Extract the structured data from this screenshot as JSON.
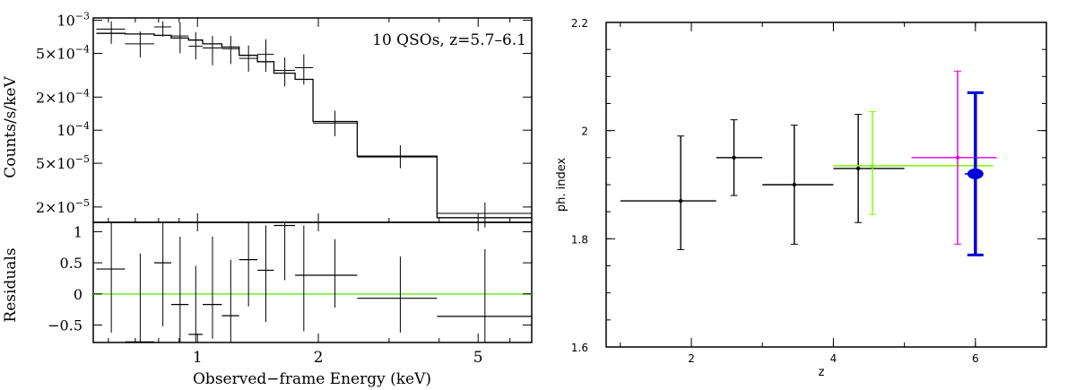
{
  "chart_data": [
    {
      "id": "spectrum",
      "type": "line",
      "log_x": true,
      "log_y": true,
      "xlim": [
        0.55,
        6.8
      ],
      "ylim": [
        1.45e-05,
        0.00105
      ],
      "annotation": "10 QSOs, z=5.7–6.1",
      "ylabel": "Counts/s/keV",
      "y_ticks": [
        {
          "value": 0.001,
          "base": "10",
          "exp": "−3"
        },
        {
          "value": 0.0005,
          "base": "5×10",
          "exp": "−4"
        },
        {
          "value": 0.0002,
          "base": "2×10",
          "exp": "−4"
        },
        {
          "value": 0.0001,
          "base": "10",
          "exp": "−4"
        },
        {
          "value": 5e-05,
          "base": "5×10",
          "exp": "−5"
        },
        {
          "value": 2e-05,
          "base": "2×10",
          "exp": "−5"
        }
      ],
      "data_points": [
        {
          "x": 0.61,
          "xlo": 0.56,
          "xhi": 0.66,
          "y": 0.00083,
          "ylo": 0.00061,
          "yhi": 0.00098
        },
        {
          "x": 0.72,
          "xlo": 0.66,
          "xhi": 0.78,
          "y": 0.00061,
          "ylo": 0.00046,
          "yhi": 0.00079
        },
        {
          "x": 0.82,
          "xlo": 0.78,
          "xhi": 0.86,
          "y": 0.00087,
          "ylo": 0.00071,
          "yhi": 0.00098
        },
        {
          "x": 0.905,
          "xlo": 0.86,
          "xhi": 0.95,
          "y": 0.00072,
          "ylo": 0.0005,
          "yhi": 0.00096
        },
        {
          "x": 0.99,
          "xlo": 0.95,
          "xhi": 1.03,
          "y": 0.00058,
          "ylo": 0.00044,
          "yhi": 0.00078
        },
        {
          "x": 1.09,
          "xlo": 1.03,
          "xhi": 1.15,
          "y": 0.00056,
          "ylo": 0.00039,
          "yhi": 0.00072
        },
        {
          "x": 1.21,
          "xlo": 1.15,
          "xhi": 1.27,
          "y": 0.00055,
          "ylo": 0.0004,
          "yhi": 0.00072
        },
        {
          "x": 1.34,
          "xlo": 1.27,
          "xhi": 1.41,
          "y": 0.00045,
          "ylo": 0.00034,
          "yhi": 0.00059
        },
        {
          "x": 1.48,
          "xlo": 1.41,
          "xhi": 1.55,
          "y": 0.00049,
          "ylo": 0.00034,
          "yhi": 0.00067
        },
        {
          "x": 1.65,
          "xlo": 1.55,
          "xhi": 1.75,
          "y": 0.00035,
          "ylo": 0.00025,
          "yhi": 0.00046
        },
        {
          "x": 1.84,
          "xlo": 1.75,
          "xhi": 1.94,
          "y": 0.00037,
          "ylo": 0.00026,
          "yhi": 0.00049
        },
        {
          "x": 2.2,
          "xlo": 1.94,
          "xhi": 2.5,
          "y": 0.000116,
          "ylo": 8.8e-05,
          "yhi": 0.00015
        },
        {
          "x": 3.2,
          "xlo": 2.5,
          "xhi": 3.95,
          "y": 5.7e-05,
          "ylo": 4.5e-05,
          "yhi": 7.3e-05
        },
        {
          "x": 5.2,
          "xlo": 3.95,
          "xhi": 6.8,
          "y": 1.75e-05,
          "ylo": 1.3e-05,
          "yhi": 2.2e-05
        }
      ],
      "model_steps": [
        {
          "xlo": 0.56,
          "xhi": 0.66,
          "y": 0.00076
        },
        {
          "xlo": 0.66,
          "xhi": 0.78,
          "y": 0.00075
        },
        {
          "xlo": 0.78,
          "xhi": 0.86,
          "y": 0.00073
        },
        {
          "xlo": 0.86,
          "xhi": 0.95,
          "y": 0.00069
        },
        {
          "xlo": 0.95,
          "xhi": 1.03,
          "y": 0.00066
        },
        {
          "xlo": 1.03,
          "xhi": 1.15,
          "y": 0.00061
        },
        {
          "xlo": 1.15,
          "xhi": 1.27,
          "y": 0.00057
        },
        {
          "xlo": 1.27,
          "xhi": 1.41,
          "y": 0.00048
        },
        {
          "xlo": 1.41,
          "xhi": 1.55,
          "y": 0.00042
        },
        {
          "xlo": 1.55,
          "xhi": 1.75,
          "y": 0.00033
        },
        {
          "xlo": 1.75,
          "xhi": 1.94,
          "y": 0.00029
        },
        {
          "xlo": 1.94,
          "xhi": 2.5,
          "y": 0.00012
        },
        {
          "xlo": 2.5,
          "xhi": 3.95,
          "y": 5.8e-05
        },
        {
          "xlo": 3.95,
          "xhi": 6.8,
          "y": 1.6e-05
        }
      ]
    },
    {
      "id": "residuals",
      "type": "scatter",
      "log_x": true,
      "xlim": [
        0.55,
        6.8
      ],
      "ylim": [
        -0.78,
        1.15
      ],
      "xlabel": "Observed−frame Energy (keV)",
      "ylabel": "Residuals",
      "x_ticks": [
        {
          "value": 1,
          "label": "1"
        },
        {
          "value": 2,
          "label": "2"
        },
        {
          "value": 5,
          "label": "5"
        }
      ],
      "y_ticks": [
        {
          "value": 1,
          "label": "1"
        },
        {
          "value": 0.5,
          "label": "0.5"
        },
        {
          "value": 0,
          "label": "0"
        },
        {
          "value": -0.5,
          "label": "−0.5"
        }
      ],
      "reference_line": {
        "y": 0,
        "color": "#90ee50"
      },
      "points": [
        {
          "x": 0.61,
          "xlo": 0.56,
          "xhi": 0.66,
          "y": 0.4,
          "ylo": -0.62,
          "yhi": 1.15
        },
        {
          "x": 0.72,
          "xlo": 0.66,
          "xhi": 0.78,
          "y": -0.77,
          "ylo": -0.78,
          "yhi": 0.65
        },
        {
          "x": 0.82,
          "xlo": 0.78,
          "xhi": 0.86,
          "y": 0.5,
          "ylo": -0.52,
          "yhi": 1.15
        },
        {
          "x": 0.905,
          "xlo": 0.86,
          "xhi": 0.95,
          "y": -0.17,
          "ylo": -0.78,
          "yhi": 0.92
        },
        {
          "x": 0.99,
          "xlo": 0.95,
          "xhi": 1.03,
          "y": -0.65,
          "ylo": -0.78,
          "yhi": 0.45
        },
        {
          "x": 1.09,
          "xlo": 1.03,
          "xhi": 1.15,
          "y": -0.17,
          "ylo": -0.72,
          "yhi": 0.92
        },
        {
          "x": 1.21,
          "xlo": 1.15,
          "xhi": 1.27,
          "y": -0.35,
          "ylo": -0.78,
          "yhi": 0.55
        },
        {
          "x": 1.34,
          "xlo": 1.27,
          "xhi": 1.41,
          "y": 0.55,
          "ylo": -0.2,
          "yhi": 1.15
        },
        {
          "x": 1.48,
          "xlo": 1.41,
          "xhi": 1.55,
          "y": 0.38,
          "ylo": -0.45,
          "yhi": 1.1
        },
        {
          "x": 1.65,
          "xlo": 1.55,
          "xhi": 1.75,
          "y": 1.1,
          "ylo": 0.22,
          "yhi": 1.15
        },
        {
          "x": 1.84,
          "xlo": 1.75,
          "xhi": 1.94,
          "y": 0.3,
          "ylo": -0.6,
          "yhi": 1.1
        },
        {
          "x": 2.2,
          "xlo": 1.94,
          "xhi": 2.5,
          "y": 0.3,
          "ylo": -0.22,
          "yhi": 0.88
        },
        {
          "x": 3.2,
          "xlo": 2.5,
          "xhi": 3.95,
          "y": -0.07,
          "ylo": -0.62,
          "yhi": 0.6
        },
        {
          "x": 5.2,
          "xlo": 3.95,
          "xhi": 6.8,
          "y": -0.36,
          "ylo": -0.78,
          "yhi": 0.72
        }
      ]
    },
    {
      "id": "photon-index",
      "type": "scatter",
      "xlim": [
        0.8,
        7.0
      ],
      "ylim": [
        1.6,
        2.2
      ],
      "xlabel": "z",
      "ylabel": "ph. index",
      "x_ticks": [
        {
          "value": 2,
          "label": "2"
        },
        {
          "value": 4,
          "label": "4"
        },
        {
          "value": 6,
          "label": "6"
        }
      ],
      "y_ticks": [
        {
          "value": 1.6,
          "label": "1.6"
        },
        {
          "value": 1.8,
          "label": "1.8"
        },
        {
          "value": 2.0,
          "label": "2"
        },
        {
          "value": 2.2,
          "label": "2.2"
        }
      ],
      "series": [
        {
          "color": "#000000",
          "points": [
            {
              "x": 1.85,
              "xlo": 1.0,
              "xhi": 2.35,
              "y": 1.87,
              "ylo": 1.78,
              "yhi": 1.99
            },
            {
              "x": 2.6,
              "xlo": 2.35,
              "xhi": 3.0,
              "y": 1.95,
              "ylo": 1.88,
              "yhi": 2.02
            },
            {
              "x": 3.45,
              "xlo": 3.0,
              "xhi": 4.0,
              "y": 1.9,
              "ylo": 1.79,
              "yhi": 2.01
            },
            {
              "x": 4.35,
              "xlo": 4.0,
              "xhi": 5.0,
              "y": 1.93,
              "ylo": 1.83,
              "yhi": 2.03
            }
          ]
        },
        {
          "color": "#7cfc00",
          "points": [
            {
              "x": 4.55,
              "xlo": 4.0,
              "xhi": 6.25,
              "y": 1.935,
              "ylo": 1.845,
              "yhi": 2.035
            }
          ]
        },
        {
          "color": "#e000e0",
          "points": [
            {
              "x": 5.75,
              "xlo": 5.1,
              "xhi": 6.3,
              "y": 1.95,
              "ylo": 1.79,
              "yhi": 2.11
            }
          ]
        },
        {
          "color": "#0000dd",
          "bold": true,
          "points": [
            {
              "x": 6.0,
              "xlo": 5.85,
              "xhi": 6.1,
              "y": 1.92,
              "ylo": 1.77,
              "yhi": 2.07
            }
          ]
        }
      ]
    }
  ]
}
